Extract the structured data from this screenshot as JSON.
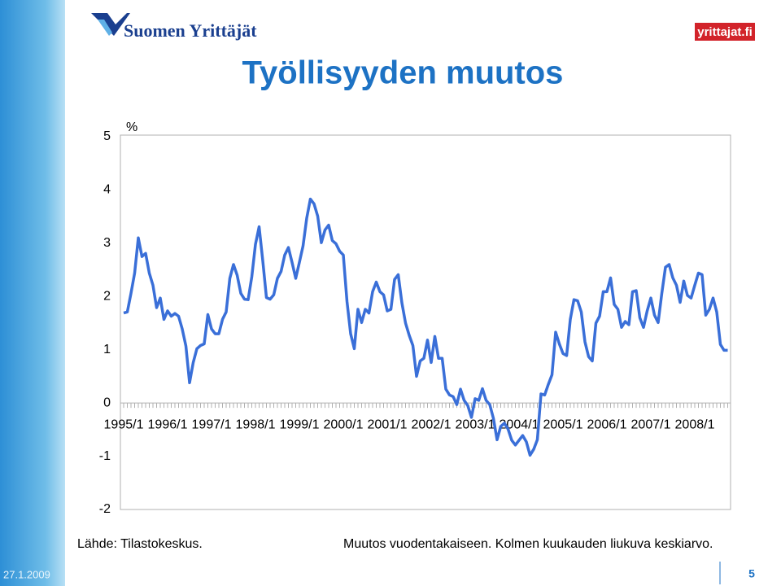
{
  "logo": "Suomen Yrittäjät",
  "site": "yrittajat.fi",
  "date": "27.1.2009",
  "page": "5",
  "chart_data": {
    "type": "line",
    "title": "Työllisyyden muutos",
    "unit": "%",
    "categories": [
      "1995/1",
      null,
      null,
      null,
      null,
      null,
      null,
      null,
      null,
      null,
      null,
      null,
      "1996/1",
      null,
      null,
      null,
      null,
      null,
      null,
      null,
      null,
      null,
      null,
      null,
      "1997/1",
      null,
      null,
      null,
      null,
      null,
      null,
      null,
      null,
      null,
      null,
      null,
      "1998/1",
      null,
      null,
      null,
      null,
      null,
      null,
      null,
      null,
      null,
      null,
      null,
      "1999/1",
      null,
      null,
      null,
      null,
      null,
      null,
      null,
      null,
      null,
      null,
      null,
      "2000/1",
      null,
      null,
      null,
      null,
      null,
      null,
      null,
      null,
      null,
      null,
      null,
      "2001/1",
      null,
      null,
      null,
      null,
      null,
      null,
      null,
      null,
      null,
      null,
      null,
      "2002/1",
      null,
      null,
      null,
      null,
      null,
      null,
      null,
      null,
      null,
      null,
      null,
      "2003/1",
      null,
      null,
      null,
      null,
      null,
      null,
      null,
      null,
      null,
      null,
      null,
      "2004/1",
      null,
      null,
      null,
      null,
      null,
      null,
      null,
      null,
      null,
      null,
      null,
      "2005/1",
      null,
      null,
      null,
      null,
      null,
      null,
      null,
      null,
      null,
      null,
      null,
      "2006/1",
      null,
      null,
      null,
      null,
      null,
      null,
      null,
      null,
      null,
      null,
      null,
      "2007/1",
      null,
      null,
      null,
      null,
      null,
      null,
      null,
      null,
      null,
      null,
      null,
      "2008/1",
      null,
      null,
      null,
      null,
      null,
      null,
      null,
      null,
      null
    ],
    "values": [
      1.69,
      1.71,
      2.06,
      2.44,
      3.1,
      2.75,
      2.81,
      2.44,
      2.21,
      1.79,
      1.97,
      1.57,
      1.73,
      1.63,
      1.68,
      1.63,
      1.39,
      1.07,
      0.38,
      0.76,
      1.02,
      1.08,
      1.11,
      1.66,
      1.39,
      1.3,
      1.3,
      1.57,
      1.71,
      2.34,
      2.6,
      2.4,
      2.06,
      1.95,
      1.94,
      2.37,
      2.98,
      3.31,
      2.67,
      1.98,
      1.95,
      2.03,
      2.34,
      2.47,
      2.78,
      2.92,
      2.64,
      2.34,
      2.64,
      2.95,
      3.47,
      3.83,
      3.74,
      3.51,
      3.01,
      3.25,
      3.34,
      3.05,
      2.99,
      2.85,
      2.78,
      1.91,
      1.3,
      1.02,
      1.76,
      1.51,
      1.76,
      1.69,
      2.09,
      2.27,
      2.09,
      2.03,
      1.73,
      1.76,
      2.32,
      2.41,
      1.88,
      1.5,
      1.27,
      1.08,
      0.5,
      0.79,
      0.84,
      1.18,
      0.76,
      1.25,
      0.84,
      0.84,
      0.26,
      0.15,
      0.12,
      -0.03,
      0.26,
      0.05,
      -0.05,
      -0.27,
      0.08,
      0.05,
      0.27,
      0.05,
      -0.03,
      -0.29,
      -0.69,
      -0.44,
      -0.38,
      -0.49,
      -0.7,
      -0.79,
      -0.7,
      -0.61,
      -0.73,
      -0.98,
      -0.87,
      -0.69,
      0.17,
      0.15,
      0.35,
      0.53,
      1.33,
      1.11,
      0.93,
      0.89,
      1.57,
      1.94,
      1.92,
      1.71,
      1.15,
      0.87,
      0.79,
      1.5,
      1.63,
      2.09,
      2.09,
      2.35,
      1.85,
      1.76,
      1.42,
      1.53,
      1.47,
      2.09,
      2.11,
      1.6,
      1.42,
      1.73,
      1.97,
      1.65,
      1.51,
      2.06,
      2.55,
      2.6,
      2.35,
      2.21,
      1.89,
      2.29,
      2.02,
      1.97,
      2.21,
      2.44,
      2.41,
      1.65,
      1.76,
      1.97,
      1.71,
      1.1,
      0.99,
      0.99
    ],
    "color": "#3a6fd8",
    "ylim": [
      -2,
      5
    ],
    "yticks": [
      -2,
      -1,
      0,
      1,
      2,
      3,
      4,
      5
    ],
    "source": "Lähde: Tilastokeskus.",
    "note": "Muutos vuodentakaiseen. Kolmen kuukauden liukuva keskiarvo."
  }
}
